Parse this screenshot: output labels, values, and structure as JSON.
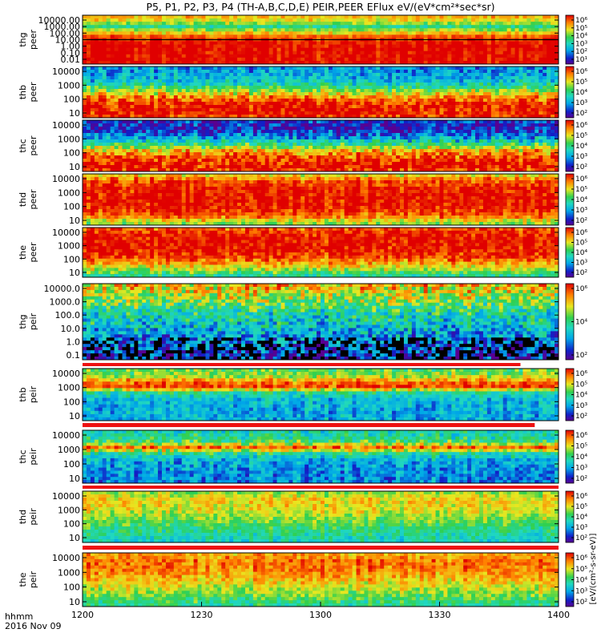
{
  "chart_data": {
    "type": "heatmap",
    "title": "P5, P1, P2, P3, P4 (TH-A,B,C,D,E) PEIR,PEER EFlux eV/(eV*cm²*sec*sr)",
    "x_label_line1": "hhmm",
    "x_label_line2": "2016 Nov 09",
    "x_range": [
      "1200",
      "1400"
    ],
    "x_ticks": [
      "1200",
      "1230",
      "1300",
      "1330",
      "1400"
    ],
    "colorscale": "rainbow (purple-blue-cyan-green-yellow-red)",
    "colorbar_label": "[eV/(cm²-s-sr-eV)]",
    "panels": [
      {
        "name": "thg peer",
        "ylabel_line1": "thg",
        "ylabel_line2": "peer",
        "y_ticks": [
          "10000.00",
          "1000.00",
          "100.00",
          "10.00",
          "1.00",
          "0.10",
          "0.01"
        ],
        "cb_ticks": [
          "10⁶",
          "10⁵",
          "10⁴",
          "10³",
          "10²",
          "10¹"
        ],
        "profile": [
          [
            0,
            5.6
          ],
          [
            0.12,
            5.0
          ],
          [
            0.22,
            3.8
          ],
          [
            0.32,
            5.2
          ],
          [
            0.45,
            6.5
          ],
          [
            0.6,
            7.0
          ],
          [
            0.8,
            7.0
          ],
          [
            1,
            7.0
          ]
        ],
        "noise": 0.25,
        "line_y": 0.5,
        "note": "strong red low-energy band"
      },
      {
        "name": "thb peer",
        "ylabel_line1": "thb",
        "ylabel_line2": "peer",
        "y_ticks": [
          "10000",
          "1000",
          "100",
          "10"
        ],
        "cb_ticks": [
          "10⁶",
          "10⁵",
          "10⁴",
          "10³",
          "10²"
        ],
        "profile": [
          [
            0,
            2.6
          ],
          [
            0.15,
            2.8
          ],
          [
            0.3,
            3.2
          ],
          [
            0.45,
            4.6
          ],
          [
            0.6,
            6.0
          ],
          [
            0.75,
            6.8
          ],
          [
            0.9,
            7.0
          ],
          [
            1,
            6.8
          ]
        ],
        "noise": 0.45
      },
      {
        "name": "thc peer",
        "ylabel_line1": "thc",
        "ylabel_line2": "peer",
        "y_ticks": [
          "10000",
          "1000",
          "100",
          "10"
        ],
        "cb_ticks": [
          "10⁶",
          "10⁵",
          "10⁴",
          "10³",
          "10²"
        ],
        "profile": [
          [
            0,
            1.8
          ],
          [
            0.15,
            1.6
          ],
          [
            0.3,
            2.4
          ],
          [
            0.45,
            3.8
          ],
          [
            0.6,
            5.6
          ],
          [
            0.75,
            6.6
          ],
          [
            0.9,
            7.0
          ],
          [
            1,
            6.8
          ]
        ],
        "noise": 0.55
      },
      {
        "name": "thd peer",
        "ylabel_line1": "thd",
        "ylabel_line2": "peer",
        "y_ticks": [
          "10000",
          "1000",
          "100",
          "10"
        ],
        "cb_ticks": [
          "10⁶",
          "10⁵",
          "10⁴",
          "10³",
          "10²"
        ],
        "profile": [
          [
            0,
            5.4
          ],
          [
            0.1,
            6.4
          ],
          [
            0.25,
            6.9
          ],
          [
            0.5,
            7.0
          ],
          [
            0.7,
            6.8
          ],
          [
            0.85,
            6.2
          ],
          [
            0.95,
            5.2
          ],
          [
            1,
            4.8
          ]
        ],
        "noise": 0.35
      },
      {
        "name": "the peer",
        "ylabel_line1": "the",
        "ylabel_line2": "peer",
        "y_ticks": [
          "10000",
          "1000",
          "100",
          "10"
        ],
        "cb_ticks": [
          "10⁶",
          "10⁵",
          "10⁴",
          "10³",
          "10²"
        ],
        "profile": [
          [
            0,
            6.4
          ],
          [
            0.1,
            6.9
          ],
          [
            0.3,
            7.0
          ],
          [
            0.55,
            6.8
          ],
          [
            0.7,
            6.0
          ],
          [
            0.85,
            5.0
          ],
          [
            0.95,
            4.2
          ],
          [
            1,
            3.8
          ]
        ],
        "noise": 0.4
      },
      {
        "name": "thg peir",
        "ylabel_line1": "thg",
        "ylabel_line2": "peir",
        "y_ticks": [
          "10000.0",
          "1000.0",
          "100.0",
          "10.0",
          "1.0",
          "0.1"
        ],
        "cb_ticks": [
          "10⁶",
          "10⁴",
          "10²"
        ],
        "profile": [
          [
            0,
            5.6
          ],
          [
            0.1,
            5.2
          ],
          [
            0.25,
            4.4
          ],
          [
            0.4,
            3.6
          ],
          [
            0.55,
            3.2
          ],
          [
            0.7,
            2.6
          ],
          [
            0.85,
            2.2
          ],
          [
            1,
            1.8
          ]
        ],
        "noise": 0.7,
        "dropouts": true
      },
      {
        "name": "thb peir",
        "ylabel_line1": "thb",
        "ylabel_line2": "peir",
        "y_ticks": [
          "10000",
          "1000",
          "100",
          "10"
        ],
        "cb_ticks": [
          "10⁶",
          "10⁵",
          "10⁴",
          "10³",
          "10²"
        ],
        "profile": [
          [
            0,
            4.4
          ],
          [
            0.12,
            4.8
          ],
          [
            0.25,
            6.2
          ],
          [
            0.35,
            6.6
          ],
          [
            0.45,
            3.8
          ],
          [
            0.6,
            3.0
          ],
          [
            0.8,
            2.8
          ],
          [
            1,
            2.8
          ]
        ],
        "noise": 0.4
      },
      {
        "name": "thc peir",
        "ylabel_line1": "thc",
        "ylabel_line2": "peir",
        "y_ticks": [
          "10000",
          "1000",
          "100",
          "10"
        ],
        "cb_ticks": [
          "10⁶",
          "10⁵",
          "10⁴",
          "10³",
          "10²"
        ],
        "profile": [
          [
            0,
            3.6
          ],
          [
            0.12,
            3.8
          ],
          [
            0.22,
            4.4
          ],
          [
            0.32,
            6.4
          ],
          [
            0.42,
            4.0
          ],
          [
            0.55,
            3.0
          ],
          [
            0.75,
            2.6
          ],
          [
            1,
            2.4
          ]
        ],
        "noise": 0.45
      },
      {
        "name": "thd peir",
        "ylabel_line1": "thd",
        "ylabel_line2": "peir",
        "y_ticks": [
          "10000",
          "1000",
          "100",
          "10"
        ],
        "cb_ticks": [
          "10⁶",
          "10⁵",
          "10⁴",
          "10³",
          "10²"
        ],
        "profile": [
          [
            0,
            4.8
          ],
          [
            0.15,
            5.4
          ],
          [
            0.35,
            5.2
          ],
          [
            0.55,
            4.6
          ],
          [
            0.75,
            4.0
          ],
          [
            0.9,
            3.6
          ],
          [
            1,
            3.4
          ]
        ],
        "noise": 0.3
      },
      {
        "name": "the peir",
        "ylabel_line1": "the",
        "ylabel_line2": "peir",
        "y_ticks": [
          "10000",
          "1000",
          "100",
          "10"
        ],
        "cb_ticks": [
          "10⁶",
          "10⁵",
          "10⁴",
          "10³",
          "10²"
        ],
        "profile": [
          [
            0,
            5.8
          ],
          [
            0.15,
            6.2
          ],
          [
            0.35,
            6.0
          ],
          [
            0.55,
            5.4
          ],
          [
            0.75,
            4.8
          ],
          [
            0.9,
            4.2
          ],
          [
            1,
            3.8
          ]
        ],
        "noise": 0.35
      }
    ]
  }
}
